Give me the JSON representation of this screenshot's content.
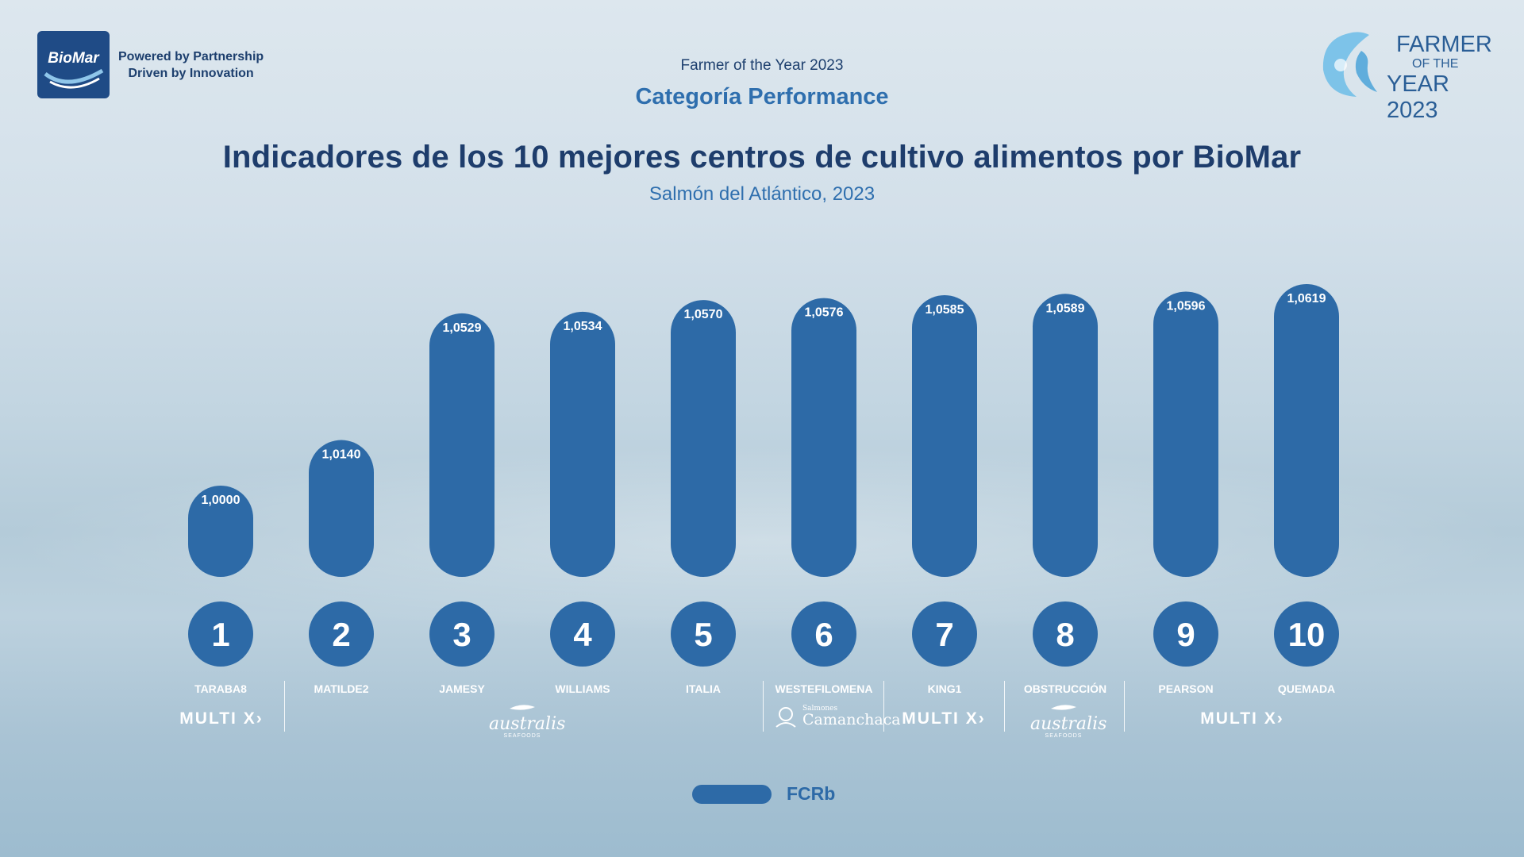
{
  "header": {
    "brand_logo_text": "BioMar",
    "tagline_line1": "Powered by Partnership",
    "tagline_line2": "Driven by Innovation",
    "event_title": "Farmer of the Year 2023",
    "category": "Categoría Performance",
    "award_line1": "FARMER",
    "award_line2": "OF THE",
    "award_line3": "YEAR 2023"
  },
  "chart_data": {
    "type": "bar",
    "title": "Indicadores de los 10 mejores centros de cultivo alimentos por BioMar",
    "subtitle": "Salmón del Atlántico, 2023",
    "series": [
      {
        "name": "FCRb",
        "values": [
          1.0,
          1.014,
          1.0529,
          1.0534,
          1.057,
          1.0576,
          1.0585,
          1.0589,
          1.0596,
          1.0619
        ]
      }
    ],
    "categories": [
      "TARABA8",
      "MATILDE2",
      "JAMESY",
      "WILLIAMS",
      "ITALIA",
      "WESTEFILOMENA",
      "KING1",
      "OBSTRUCCIÓN",
      "PEARSON",
      "QUEMADA"
    ],
    "ranks": [
      "1",
      "2",
      "3",
      "4",
      "5",
      "6",
      "7",
      "8",
      "9",
      "10"
    ],
    "value_labels": [
      "1,0000",
      "1,0140",
      "1,0529",
      "1,0534",
      "1,0570",
      "1,0576",
      "1,0585",
      "1,0589",
      "1,0596",
      "1,0619"
    ],
    "legend": "FCRb",
    "legend_position": "bottom-center",
    "bar_color": "#2d6aa7"
  },
  "partners": {
    "multix_label": "MULTI X",
    "australis_name": "australis",
    "australis_sub": "SEAFOODS",
    "camanchaca_sub": "Salmones",
    "camanchaca_name": "Camanchaca"
  }
}
